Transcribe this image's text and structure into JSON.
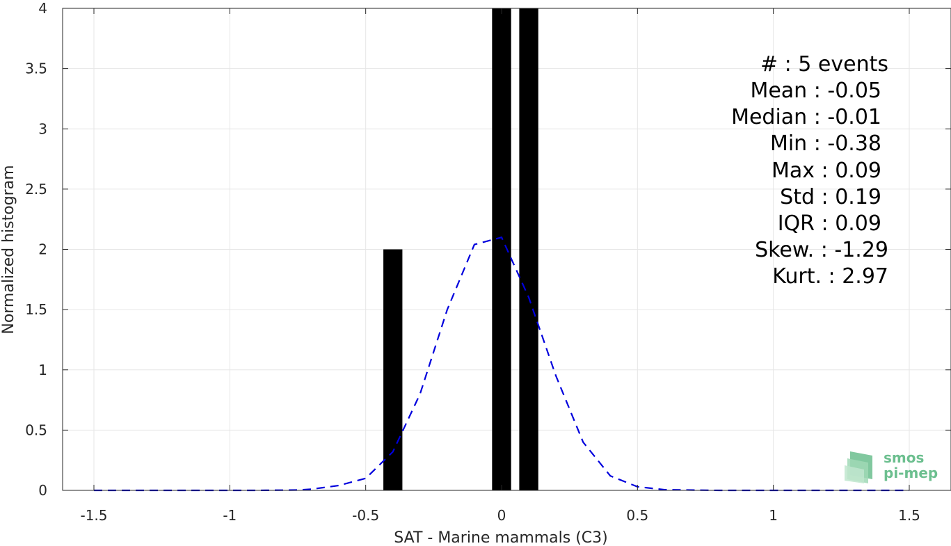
{
  "chart_data": {
    "type": "bar",
    "xlabel": "SAT - Marine mammals (C3)",
    "ylabel": "Normalized histogram",
    "xlim": [
      -1.5,
      1.5
    ],
    "ylim": [
      0,
      4
    ],
    "xticks": [
      -1.5,
      -1,
      -0.5,
      0,
      0.5,
      1,
      1.5
    ],
    "xtick_labels": [
      "-1.5",
      "-1",
      "-0.5",
      "0",
      "0.5",
      "1",
      "1.5"
    ],
    "yticks": [
      0,
      0.5,
      1,
      1.5,
      2,
      2.5,
      3,
      3.5,
      4
    ],
    "ytick_labels": [
      "0",
      "0.5",
      "1",
      "1.5",
      "2",
      "2.5",
      "3",
      "3.5",
      "4"
    ],
    "grid": true,
    "bar_width": 0.07,
    "bars": [
      {
        "x": -0.4,
        "value": 2
      },
      {
        "x": 0.0,
        "value": 4
      },
      {
        "x": 0.1,
        "value": 4
      }
    ],
    "bar_color": "#000000",
    "fit_curve": {
      "style": "dashed",
      "color": "#0000dd",
      "x": [
        -1.5,
        -1.2,
        -0.9,
        -0.75,
        -0.7,
        -0.6,
        -0.5,
        -0.4,
        -0.3,
        -0.2,
        -0.1,
        0.0,
        0.1,
        0.2,
        0.3,
        0.4,
        0.5,
        0.6,
        0.8,
        1.0,
        1.2,
        1.5
      ],
      "y": [
        0.0,
        0.0,
        0.0,
        0.003,
        0.01,
        0.04,
        0.1,
        0.32,
        0.8,
        1.5,
        2.04,
        2.1,
        1.6,
        0.95,
        0.4,
        0.12,
        0.03,
        0.005,
        0.0,
        0.0,
        0.0,
        0.0
      ]
    },
    "annotations": [
      "#  : 5 events",
      "Mean : -0.05",
      "Median : -0.01",
      "Min : -0.38",
      "Max : 0.09",
      "Std : 0.19",
      "IQR : 0.09",
      "Skew. : -1.29",
      "Kurt. : 2.97"
    ]
  },
  "logo": {
    "line1": "smos",
    "line2": "pi-mep",
    "color": "#6cbf8f"
  }
}
